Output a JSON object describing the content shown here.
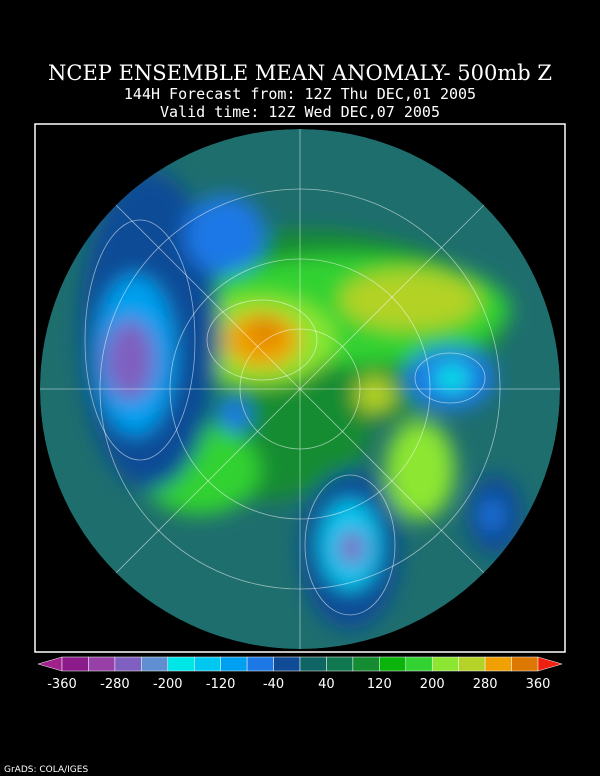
{
  "header": {
    "title": "NCEP ENSEMBLE MEAN ANOMALY- 500mb Z",
    "subtitle": "144H Forecast from: 12Z Thu DEC,01 2005",
    "valid": "Valid time: 12Z Wed DEC,07 2005"
  },
  "colorbar": {
    "ticks": [
      -360,
      -280,
      -200,
      -120,
      -40,
      40,
      120,
      200,
      280,
      360
    ],
    "colors": [
      "#a0208c",
      "#8b1a8b",
      "#9640a8",
      "#7f5fbf",
      "#5f8fd0",
      "#00e6e6",
      "#00c8f0",
      "#00a0f0",
      "#1e78e6",
      "#0f4b96",
      "#0f6464",
      "#0f7850",
      "#148c32",
      "#0ab40a",
      "#32d232",
      "#8ce632",
      "#b4d228",
      "#f0a000",
      "#dc7800",
      "#f02010"
    ]
  },
  "footer": "GrADS: COLA/IGES"
}
